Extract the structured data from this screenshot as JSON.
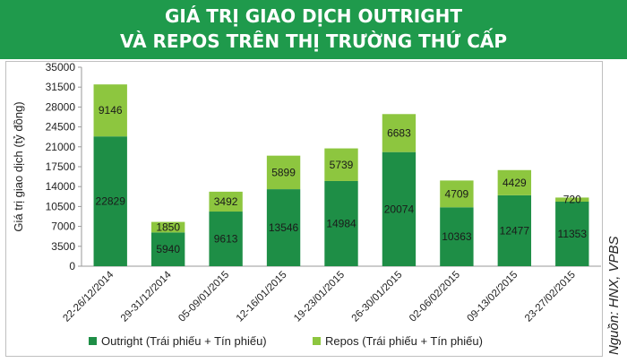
{
  "header": {
    "title_line1": "GIÁ TRỊ GIAO DỊCH OUTRIGHT",
    "title_line2": "VÀ REPOS TRÊN THỊ TRƯỜNG THỨ CẤP"
  },
  "source": "Nguồn: HNX, VPBS",
  "colors": {
    "header_bg": "#1f9a4c",
    "outright": "#1e8e46",
    "repos": "#8dc63f"
  },
  "chart_data": {
    "type": "bar",
    "stacked": true,
    "title": "",
    "xlabel": "",
    "ylabel": "Giá trị giao dịch (tỷ đồng)",
    "ylim": [
      0,
      35000
    ],
    "yticks": [
      0,
      3500,
      7000,
      10500,
      14000,
      17500,
      21000,
      24500,
      28000,
      31500,
      35000
    ],
    "grid": false,
    "legend": "bottom",
    "categories": [
      "22-26/12/2014",
      "29-31/12/2014",
      "05-09/01/2015",
      "12-16/01/2015",
      "19-23/01/2015",
      "26-30/01/2015",
      "02-06/02/2015",
      "09-13/02/2015",
      "23-27/02/2015"
    ],
    "series": [
      {
        "name": "Outright (Trái phiếu + Tín phiếu)",
        "values": [
          22829,
          5940,
          9613,
          13546,
          14984,
          20074,
          10363,
          12477,
          11353
        ]
      },
      {
        "name": "Repos (Trái phiếu + Tín phiếu)",
        "values": [
          9146,
          1850,
          3492,
          5899,
          5739,
          6683,
          4709,
          4429,
          720
        ]
      }
    ]
  }
}
